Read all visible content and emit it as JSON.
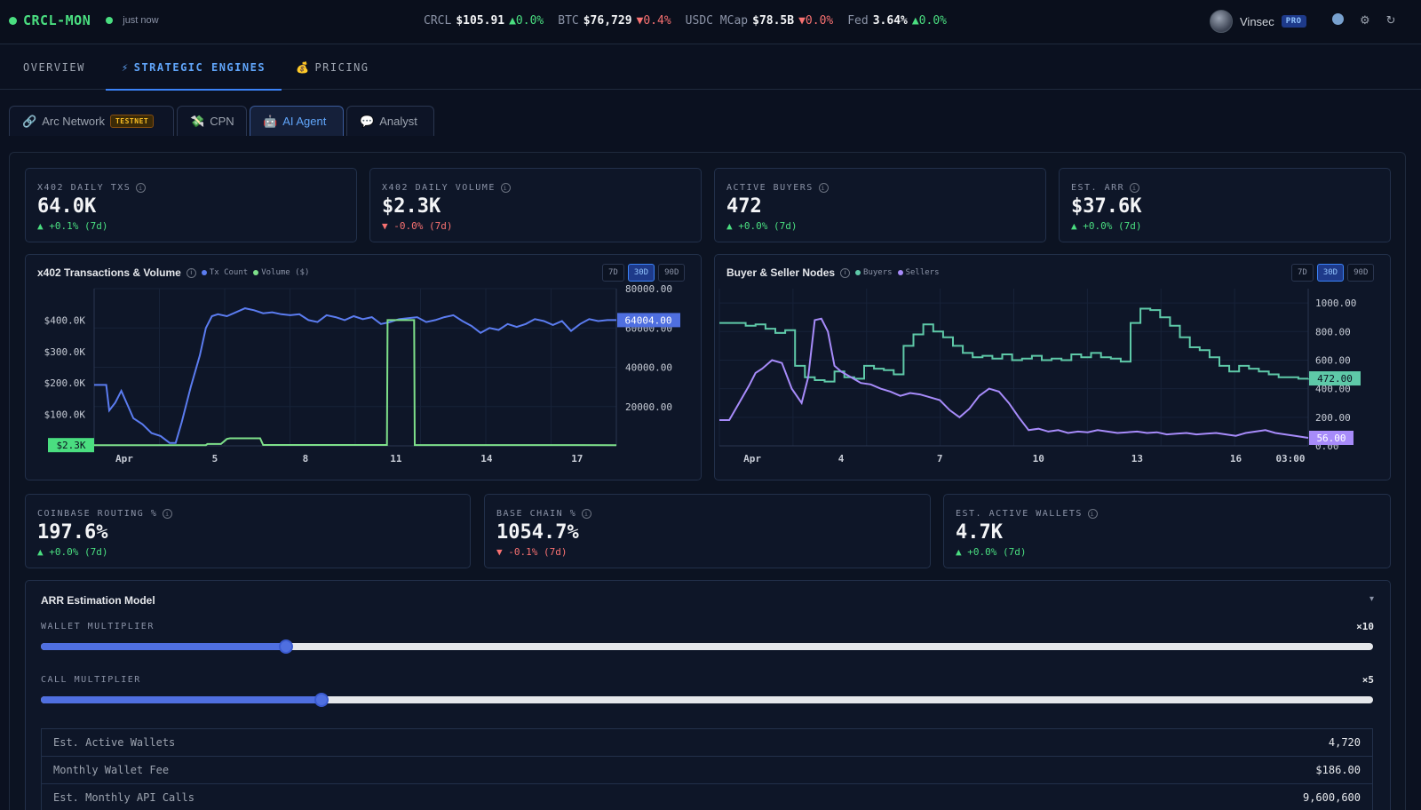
{
  "brand": {
    "name": "CRCL-MON",
    "status": "just now"
  },
  "ticker": [
    {
      "symbol": "CRCL",
      "value": "$105.91",
      "change": "▲0.0%",
      "dir": "up"
    },
    {
      "symbol": "BTC",
      "value": "$76,729",
      "change": "▼0.4%",
      "dir": "down"
    },
    {
      "symbol": "USDC MCap",
      "value": "$78.5B",
      "change": "▼0.0%",
      "dir": "down"
    },
    {
      "symbol": "Fed",
      "value": "3.64%",
      "change": "▲0.0%",
      "dir": "up"
    }
  ],
  "user": {
    "name": "Vinsec",
    "badge": "PRO"
  },
  "main_tabs": [
    {
      "label": "OVERVIEW",
      "icon": ""
    },
    {
      "label": "STRATEGIC ENGINES",
      "icon": "⚡"
    },
    {
      "label": "PRICING",
      "icon": "💰"
    }
  ],
  "sub_tabs": [
    {
      "label": "Arc Network",
      "icon": "🔗",
      "badge": "TESTNET"
    },
    {
      "label": "CPN",
      "icon": "💸"
    },
    {
      "label": "AI Agent",
      "icon": "🤖"
    },
    {
      "label": "Analyst",
      "icon": "💬"
    }
  ],
  "kpis_top": [
    {
      "label": "X402 DAILY TXS",
      "value": "64.0K",
      "change": "▲ +0.1% (7d)",
      "dir": "up"
    },
    {
      "label": "X402 DAILY VOLUME",
      "value": "$2.3K",
      "change": "▼ -0.0% (7d)",
      "dir": "down"
    },
    {
      "label": "ACTIVE BUYERS",
      "value": "472",
      "change": "▲ +0.0% (7d)",
      "dir": "up"
    },
    {
      "label": "EST. ARR",
      "value": "$37.6K",
      "change": "▲ +0.0% (7d)",
      "dir": "up"
    }
  ],
  "kpis_mid": [
    {
      "label": "COINBASE ROUTING %",
      "value": "197.6%",
      "change": "▲ +0.0% (7d)",
      "dir": "up"
    },
    {
      "label": "BASE CHAIN %",
      "value": "1054.7%",
      "change": "▼ -0.1% (7d)",
      "dir": "down"
    },
    {
      "label": "EST. ACTIVE WALLETS",
      "value": "4.7K",
      "change": "▲ +0.0% (7d)",
      "dir": "up"
    }
  ],
  "range_buttons": [
    "7D",
    "30D",
    "90D"
  ],
  "colors": {
    "tx": "#5b7cf0",
    "volume": "#7ee08a",
    "buyers": "#5ec9a8",
    "sellers": "#a78bfa"
  },
  "chart_data": [
    {
      "type": "line",
      "title": "x402 Transactions & Volume",
      "legend": [
        "Tx Count",
        "Volume ($)"
      ],
      "x_ticks": [
        "Apr",
        "5",
        "8",
        "11",
        "14",
        "17"
      ],
      "y_left_ticks": [
        "$400.0K",
        "$300.0K",
        "$200.0K",
        "$100.0K"
      ],
      "y_right_ticks": [
        "80000.00",
        "60000.00",
        "40000.00",
        "20000.00"
      ],
      "left_range": [
        0,
        500000
      ],
      "right_range": [
        0,
        80000
      ],
      "x_range": [
        1,
        18.3
      ],
      "last_volume_label": "$2.3K",
      "last_tx_label": "64004.00",
      "series": [
        {
          "name": "Tx Count",
          "axis": "right",
          "x": [
            1.0,
            1.4,
            1.5,
            1.7,
            1.9,
            2.1,
            2.3,
            2.6,
            2.9,
            3.2,
            3.5,
            3.7,
            3.9,
            4.2,
            4.5,
            4.7,
            4.9,
            5.1,
            5.4,
            5.7,
            6.0,
            6.3,
            6.6,
            6.9,
            7.2,
            7.5,
            7.8,
            8.1,
            8.4,
            8.7,
            9.0,
            9.3,
            9.6,
            9.9,
            10.2,
            10.5,
            10.8,
            11.1,
            11.4,
            11.7,
            12.0,
            12.3,
            12.6,
            12.9,
            13.2,
            13.5,
            13.8,
            14.1,
            14.4,
            14.7,
            15.0,
            15.3,
            15.6,
            15.9,
            16.2,
            16.5,
            16.8,
            17.1,
            17.4,
            17.7,
            18.0,
            18.3
          ],
          "y": [
            31000,
            31000,
            18000,
            22000,
            28000,
            21000,
            14000,
            11000,
            6500,
            5000,
            1500,
            1500,
            12000,
            30000,
            46000,
            60000,
            66000,
            67000,
            66000,
            68000,
            70000,
            69000,
            67500,
            68000,
            67000,
            66500,
            67000,
            64000,
            63000,
            66500,
            65500,
            64000,
            66000,
            64500,
            65500,
            62000,
            63000,
            64500,
            65000,
            65500,
            63000,
            64000,
            65500,
            66500,
            63500,
            61000,
            57500,
            60000,
            59000,
            62000,
            60500,
            62000,
            64500,
            63500,
            61500,
            63500,
            58500,
            62000,
            64500,
            63500,
            64000,
            64004
          ]
        },
        {
          "name": "Volume ($)",
          "axis": "left",
          "x": [
            1.0,
            2.0,
            3.0,
            4.0,
            4.7,
            4.75,
            5.2,
            5.4,
            5.5,
            5.8,
            6.5,
            6.6,
            7.5,
            8.5,
            9.5,
            10.5,
            10.7,
            10.72,
            11.6,
            11.62,
            12.0,
            13.0,
            14.0,
            15.0,
            16.0,
            17.0,
            18.3
          ],
          "y": [
            2300,
            2300,
            2300,
            2300,
            2300,
            6000,
            6000,
            22000,
            24000,
            24000,
            24000,
            2800,
            2800,
            2800,
            2800,
            2800,
            2800,
            400000,
            400000,
            2500,
            2500,
            2500,
            2500,
            2500,
            2500,
            2500,
            2300
          ]
        }
      ]
    },
    {
      "type": "line",
      "title": "Buyer & Seller Nodes",
      "legend": [
        "Buyers",
        "Sellers"
      ],
      "x_ticks": [
        "Apr",
        "4",
        "7",
        "10",
        "13",
        "16",
        "03:00"
      ],
      "y_ticks": [
        "1000.00",
        "800.00",
        "600.00",
        "400.00",
        "200.00",
        "0.00"
      ],
      "y_range": [
        0,
        1100
      ],
      "x_range": [
        1,
        18.9
      ],
      "last_buyers_label": "472.00",
      "last_sellers_label": "56.00",
      "series": [
        {
          "name": "Buyers",
          "x": [
            1.0,
            1.4,
            1.8,
            2.1,
            2.4,
            2.7,
            3.0,
            3.3,
            3.6,
            3.9,
            4.2,
            4.5,
            4.8,
            5.1,
            5.4,
            5.7,
            6.0,
            6.3,
            6.6,
            6.9,
            7.2,
            7.5,
            7.8,
            8.1,
            8.4,
            8.7,
            9.0,
            9.3,
            9.6,
            9.9,
            10.2,
            10.5,
            10.8,
            11.1,
            11.4,
            11.7,
            12.0,
            12.3,
            12.6,
            12.9,
            13.2,
            13.5,
            13.8,
            14.1,
            14.4,
            14.7,
            15.0,
            15.3,
            15.6,
            15.9,
            16.2,
            16.5,
            16.8,
            17.1,
            17.4,
            17.7,
            18.0,
            18.3,
            18.6,
            18.9
          ],
          "y": [
            860,
            860,
            840,
            850,
            820,
            790,
            810,
            560,
            480,
            460,
            450,
            520,
            480,
            470,
            560,
            540,
            530,
            500,
            700,
            780,
            850,
            800,
            760,
            700,
            650,
            620,
            630,
            610,
            640,
            600,
            610,
            630,
            600,
            610,
            600,
            640,
            620,
            650,
            620,
            610,
            590,
            860,
            960,
            950,
            900,
            840,
            760,
            690,
            670,
            620,
            560,
            520,
            560,
            540,
            520,
            500,
            480,
            480,
            470,
            472
          ]
        },
        {
          "name": "Sellers",
          "x": [
            1.0,
            1.3,
            1.6,
            1.9,
            2.1,
            2.3,
            2.6,
            2.9,
            3.2,
            3.5,
            3.7,
            3.9,
            4.1,
            4.3,
            4.5,
            4.7,
            5.0,
            5.3,
            5.6,
            5.9,
            6.2,
            6.5,
            6.8,
            7.1,
            7.4,
            7.7,
            8.0,
            8.3,
            8.6,
            8.9,
            9.2,
            9.5,
            9.8,
            10.1,
            10.4,
            10.7,
            11.0,
            11.3,
            11.6,
            11.9,
            12.2,
            12.5,
            12.8,
            13.1,
            13.4,
            13.7,
            14.0,
            14.3,
            14.6,
            14.9,
            15.2,
            15.5,
            15.8,
            16.1,
            16.4,
            16.7,
            17.0,
            17.3,
            17.6,
            17.9,
            18.2,
            18.5,
            18.9
          ],
          "y": [
            180,
            180,
            300,
            420,
            510,
            540,
            600,
            580,
            400,
            300,
            480,
            880,
            890,
            800,
            560,
            520,
            480,
            440,
            430,
            400,
            380,
            350,
            370,
            360,
            340,
            320,
            250,
            200,
            260,
            350,
            400,
            380,
            300,
            200,
            110,
            120,
            100,
            110,
            90,
            100,
            95,
            110,
            100,
            90,
            95,
            100,
            90,
            95,
            80,
            85,
            90,
            80,
            85,
            90,
            80,
            70,
            90,
            100,
            110,
            90,
            80,
            70,
            56
          ]
        }
      ]
    }
  ],
  "arr": {
    "title": "ARR Estimation Model",
    "caret": "▾",
    "wallet_multiplier": {
      "label": "WALLET MULTIPLIER",
      "value_label": "×10",
      "value": 10,
      "min": 1,
      "max": 50
    },
    "call_multiplier": {
      "label": "CALL MULTIPLIER",
      "value_label": "×5",
      "value": 5,
      "min": 1,
      "max": 20
    },
    "rows": [
      {
        "key": "Est. Active Wallets",
        "value": "4,720"
      },
      {
        "key": "Monthly Wallet Fee",
        "value": "$186.00"
      },
      {
        "key": "Est. Monthly API Calls",
        "value": "9,600,600"
      }
    ]
  }
}
